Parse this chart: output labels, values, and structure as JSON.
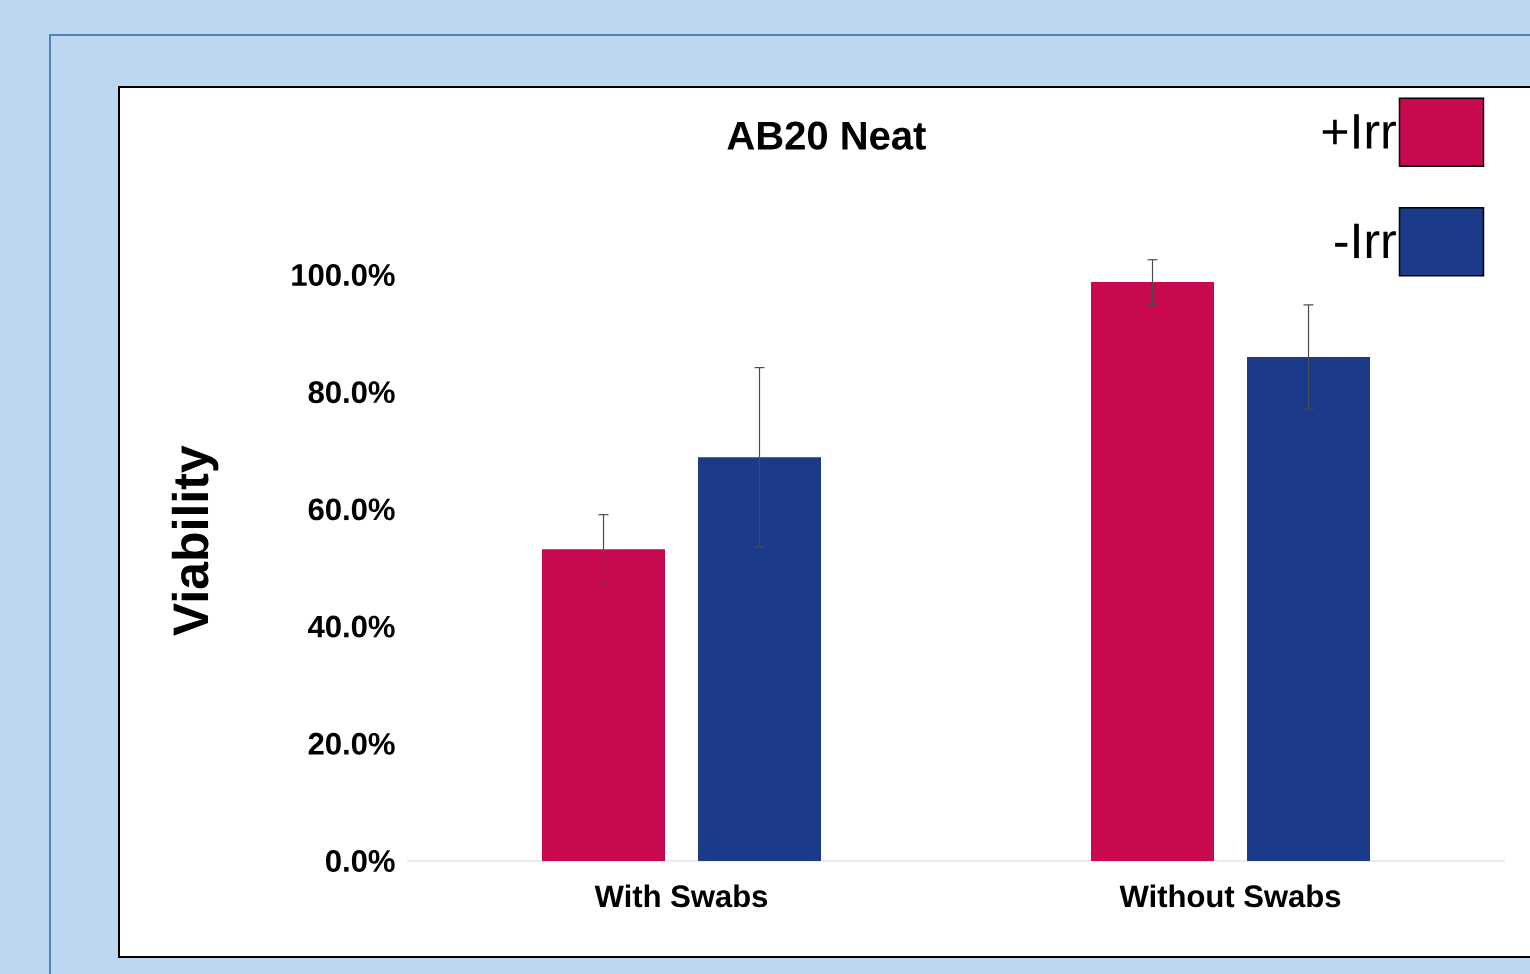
{
  "chart_data": {
    "type": "bar",
    "title": "AB20 Neat",
    "ylabel": "Viability",
    "categories": [
      "With Swabs",
      "Without Swabs"
    ],
    "series": [
      {
        "name": "+Irr",
        "color": "#c8094f",
        "values": [
          53.2,
          98.8
        ],
        "errors": [
          5.9,
          3.8
        ]
      },
      {
        "name": "-Irr",
        "color": "#1b3a89",
        "values": [
          68.9,
          86.0
        ],
        "errors": [
          15.3,
          8.9
        ]
      }
    ],
    "ylim": [
      0,
      132
    ],
    "yticks": [
      {
        "value": 0,
        "label": "0.0%"
      },
      {
        "value": 20,
        "label": "20.0%"
      },
      {
        "value": 40,
        "label": "40.0%"
      },
      {
        "value": 60,
        "label": "60.0%"
      },
      {
        "value": 80,
        "label": "80.0%"
      },
      {
        "value": 100,
        "label": "100.0%"
      }
    ],
    "grid": false,
    "legend": "top right"
  }
}
